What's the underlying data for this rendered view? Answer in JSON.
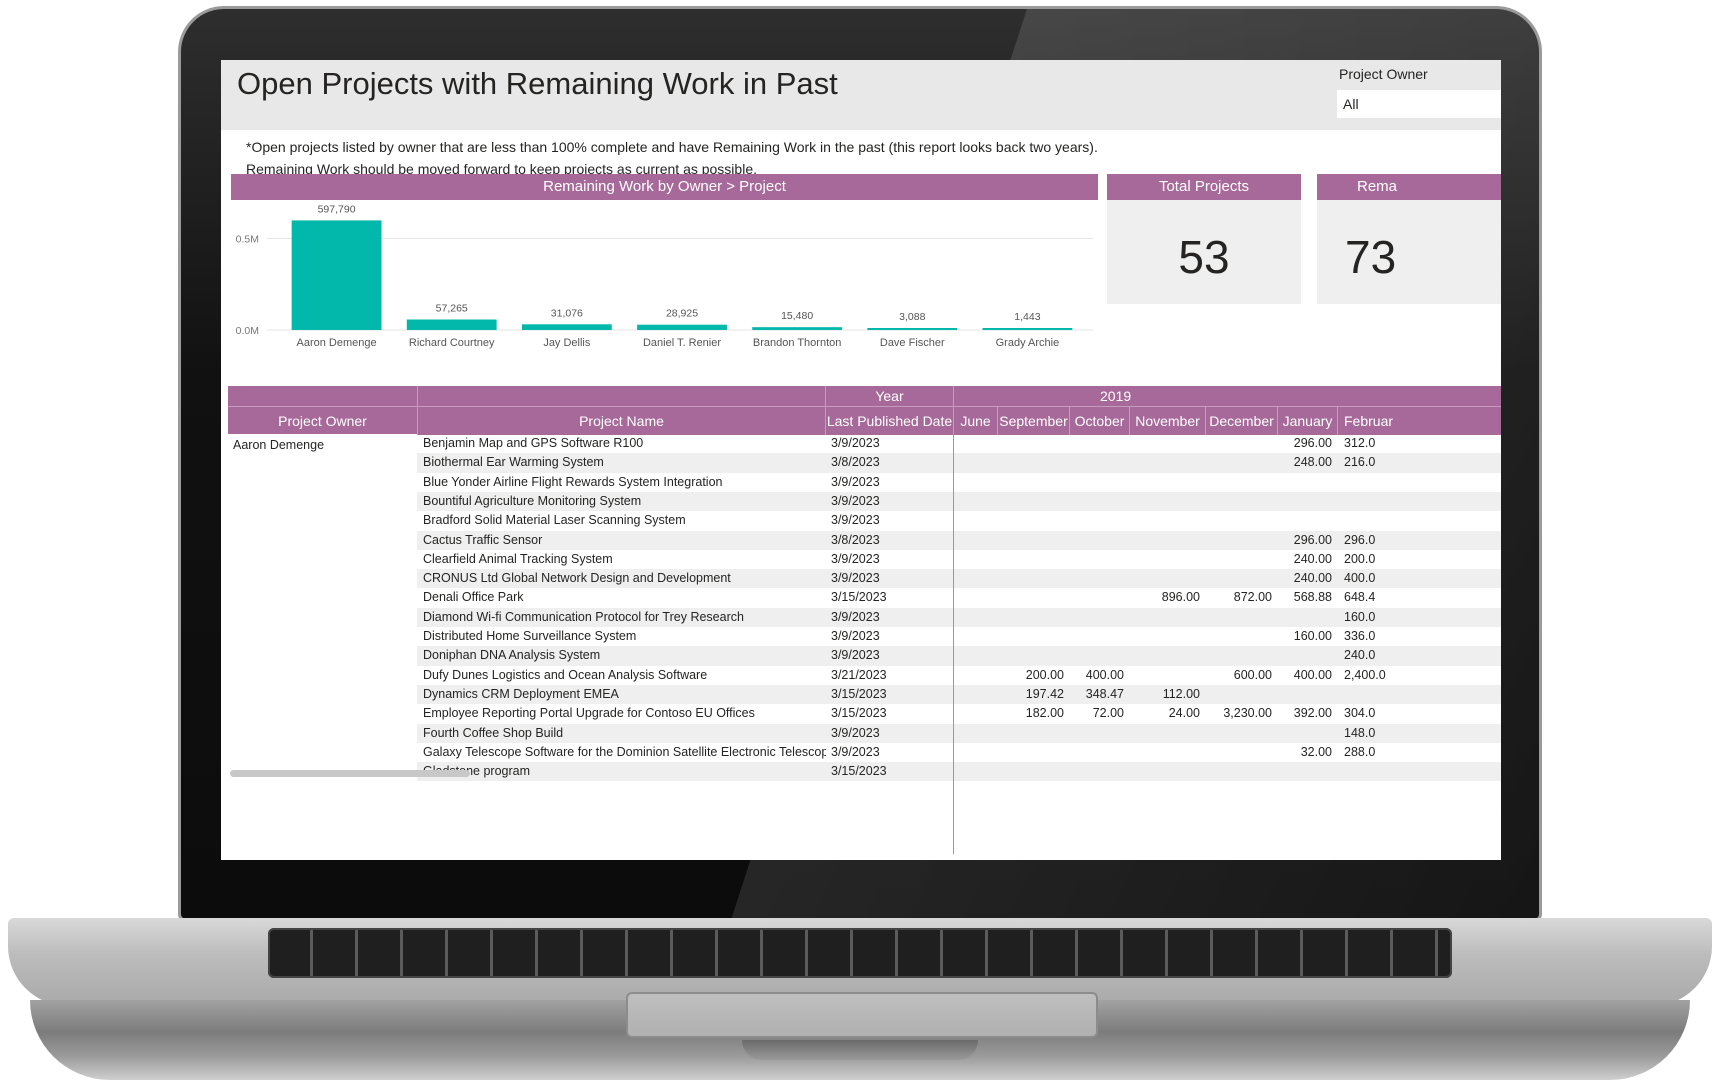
{
  "report": {
    "title": "Open Projects with Remaining Work in Past",
    "description": "*Open projects listed by owner that are less than 100% complete and have Remaining Work in the past (this report looks back two years). Remaining Work should be moved forward to keep projects as current as possible."
  },
  "slicer": {
    "label": "Project Owner",
    "value": "All"
  },
  "chart_panel": {
    "header": "Remaining Work by Owner > Project"
  },
  "chart_data": {
    "type": "bar",
    "title": "Remaining Work by Owner > Project",
    "categories": [
      "Aaron Demenge",
      "Richard Courtney",
      "Jay Dellis",
      "Daniel T. Renier",
      "Brandon Thornton",
      "Dave Fischer",
      "Grady Archie"
    ],
    "values": [
      597790,
      57265,
      31076,
      28925,
      15480,
      3088,
      1443
    ],
    "data_labels": [
      "597,790",
      "57,265",
      "31,076",
      "28,925",
      "15,480",
      "3,088",
      "1,443"
    ],
    "yticks": [
      "0.0M",
      "0.5M"
    ],
    "ytick_values": [
      0,
      500000
    ],
    "ylim": [
      0,
      600000
    ],
    "grid": true,
    "bar_color": "#01b8aa"
  },
  "kpis": [
    {
      "label": "Total Projects",
      "value": "53"
    },
    {
      "label": "Rema",
      "value": "73"
    }
  ],
  "table": {
    "group_headers": {
      "year": "Year",
      "year_value": "2019"
    },
    "columns": [
      "Project Owner",
      "Project Name",
      "Last Published Date",
      "June",
      "September",
      "October",
      "November",
      "December",
      "January",
      "Februar"
    ],
    "owner": "Aaron Demenge",
    "rows": [
      [
        "Benjamin Map and GPS Software R100",
        "3/9/2023",
        "",
        "",
        "",
        "",
        "",
        "296.00",
        "312.0"
      ],
      [
        "Biothermal Ear Warming System",
        "3/8/2023",
        "",
        "",
        "",
        "",
        "",
        "248.00",
        "216.0"
      ],
      [
        "Blue Yonder Airline Flight Rewards System Integration",
        "3/9/2023",
        "",
        "",
        "",
        "",
        "",
        "",
        ""
      ],
      [
        "Bountiful Agriculture Monitoring System",
        "3/9/2023",
        "",
        "",
        "",
        "",
        "",
        "",
        ""
      ],
      [
        "Bradford Solid Material Laser Scanning System",
        "3/9/2023",
        "",
        "",
        "",
        "",
        "",
        "",
        ""
      ],
      [
        "Cactus Traffic Sensor",
        "3/8/2023",
        "",
        "",
        "",
        "",
        "",
        "296.00",
        "296.0"
      ],
      [
        "Clearfield Animal Tracking System",
        "3/9/2023",
        "",
        "",
        "",
        "",
        "",
        "240.00",
        "200.0"
      ],
      [
        "CRONUS Ltd Global Network Design and Development",
        "3/9/2023",
        "",
        "",
        "",
        "",
        "",
        "240.00",
        "400.0"
      ],
      [
        "Denali Office Park",
        "3/15/2023",
        "",
        "",
        "",
        "896.00",
        "872.00",
        "568.88",
        "648.4"
      ],
      [
        "Diamond Wi-fi Communication Protocol for Trey Research",
        "3/9/2023",
        "",
        "",
        "",
        "",
        "",
        "",
        "160.0"
      ],
      [
        "Distributed Home Surveillance System",
        "3/9/2023",
        "",
        "",
        "",
        "",
        "",
        "160.00",
        "336.0"
      ],
      [
        "Doniphan DNA Analysis System",
        "3/9/2023",
        "",
        "",
        "",
        "",
        "",
        "",
        "240.0"
      ],
      [
        "Dufy Dunes Logistics and Ocean Analysis Software",
        "3/21/2023",
        "",
        "200.00",
        "400.00",
        "",
        "600.00",
        "400.00",
        "2,400.0"
      ],
      [
        "Dynamics CRM Deployment EMEA",
        "3/15/2023",
        "",
        "197.42",
        "348.47",
        "112.00",
        "",
        "",
        ""
      ],
      [
        "Employee Reporting Portal Upgrade for Contoso EU Offices",
        "3/15/2023",
        "",
        "182.00",
        "72.00",
        "24.00",
        "3,230.00",
        "392.00",
        "304.0"
      ],
      [
        "Fourth Coffee Shop Build",
        "3/9/2023",
        "",
        "",
        "",
        "",
        "",
        "",
        "148.0"
      ],
      [
        "Galaxy Telescope Software for the Dominion Satellite Electronic Telescope",
        "3/9/2023",
        "",
        "",
        "",
        "",
        "",
        "32.00",
        "288.0"
      ],
      [
        "Gladstone program",
        "3/15/2023",
        "",
        "",
        "",
        "",
        "",
        "",
        ""
      ]
    ]
  }
}
